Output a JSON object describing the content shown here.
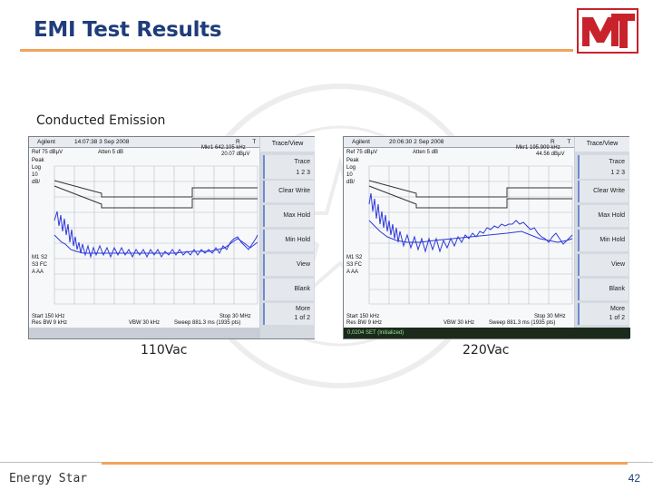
{
  "slide": {
    "title": "EMI Test Results",
    "section_label": "Conducted Emission",
    "footer": "Energy Star",
    "page_number": "42",
    "accent_color": "#f2a35c",
    "title_color": "#1f3d7a",
    "logo_color": "#c8232c"
  },
  "analyzers": [
    {
      "caption": "110Vac",
      "header_brand": "Agilent",
      "header_time": "14:07:38  3 Sep 2008",
      "header_rt": "R   T",
      "marker": "Mkr1  642.105 kHz",
      "marker_value": "20.07 dBμV",
      "ref": "Ref 75 dBμV",
      "atten": "Atten 5 dB",
      "left_labels": [
        "Peak",
        "Log",
        "10",
        "dB/"
      ],
      "trace_labels": [
        "M1  S2",
        "S3  FC",
        "A   AA"
      ],
      "start": "Start 150 kHz",
      "stop": "Stop 30 MHz",
      "res_bw": "Res BW 9 kHz",
      "vbw": "VBW 30 kHz",
      "sweep": "Sweep 881.3 ms (1935 pts)",
      "status": "",
      "softkeys": {
        "header": "Trace/View",
        "trace": "Trace",
        "trace_nums": "1    2    3",
        "buttons": [
          "Clear Write",
          "Max Hold",
          "Min Hold",
          "View",
          "Blank",
          "More"
        ],
        "more_sub": "1 of 2"
      }
    },
    {
      "caption": "220Vac",
      "header_brand": "Agilent",
      "header_time": "20:06:30  2 Sep 2008",
      "header_rt": "R   T",
      "marker": "Mkr1  195.909 kHz",
      "marker_value": "44.56 dBμV",
      "ref": "Ref 75 dBμV",
      "atten": "Atten 5 dB",
      "left_labels": [
        "Peak",
        "Log",
        "10",
        "dB/"
      ],
      "trace_labels": [
        "M1  S2",
        "S3  FC",
        "A   AA"
      ],
      "start": "Start 150 kHz",
      "stop": "Stop 30 MHz",
      "res_bw": "Res BW 9 kHz",
      "vbw": "VBW 30 kHz",
      "sweep": "Sweep 881.3 ms (1935 pts)",
      "status": "0,0204 SET (Initialized)",
      "softkeys": {
        "header": "Trace/View",
        "trace": "Trace",
        "trace_nums": "1    2    3",
        "buttons": [
          "Clear Write",
          "Max Hold",
          "Min Hold",
          "View",
          "Blank",
          "More"
        ],
        "more_sub": "1 of 2"
      }
    }
  ]
}
